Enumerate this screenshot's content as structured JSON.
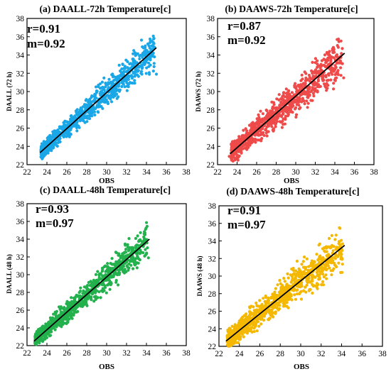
{
  "charts": [
    {
      "id": "a",
      "title": "(a) DAALL-72h Temperature[c]",
      "r_label": "r=0.91",
      "m_label": "m=0.92",
      "xlabel": "OBS",
      "ylabel": "DAALL (72 h)",
      "color": "#1aa7e8",
      "xlim": [
        22,
        38
      ],
      "ylim": [
        22,
        38
      ],
      "ticks": [
        "22",
        "24",
        "26",
        "28",
        "30",
        "32",
        "34",
        "36",
        "38"
      ],
      "fit": {
        "x": [
          23.3,
          35.0
        ],
        "y": [
          23.3,
          34.8
        ]
      }
    },
    {
      "id": "b",
      "title": "(b) DAAWS-72h Temperature[c]",
      "r_label": "r=0.87",
      "m_label": "m=0.92",
      "xlabel": "OBS",
      "ylabel": "DAAWS (72 h)",
      "color": "#ee4a4a",
      "xlim": [
        22,
        38
      ],
      "ylim": [
        22,
        38
      ],
      "ticks": [
        "22",
        "24",
        "26",
        "28",
        "30",
        "32",
        "34",
        "36",
        "38"
      ],
      "fit": {
        "x": [
          23.3,
          35.0
        ],
        "y": [
          23.2,
          34.2
        ]
      }
    },
    {
      "id": "c",
      "title": "(c) DAALL-48h Temperature[c]",
      "r_label": "r=0.93",
      "m_label": "m=0.97",
      "xlabel": "OBS",
      "ylabel": "DAALL (48 h)",
      "color": "#22b14c",
      "xlim": [
        22,
        38
      ],
      "ylim": [
        22,
        38
      ],
      "ticks": [
        "22",
        "24",
        "26",
        "28",
        "30",
        "32",
        "34",
        "36",
        "38"
      ],
      "fit": {
        "x": [
          22.7,
          34.3
        ],
        "y": [
          22.5,
          34.0
        ]
      }
    },
    {
      "id": "d",
      "title": "(d) DAAWS-48h Temperature[c]",
      "r_label": "r=0.91",
      "m_label": "m=0.97",
      "xlabel": "OBS",
      "ylabel": "DAAWS (48 h)",
      "color": "#f5b800",
      "xlim": [
        22,
        38
      ],
      "ylim": [
        22,
        38
      ],
      "ticks": [
        "22",
        "24",
        "26",
        "28",
        "30",
        "32",
        "34",
        "36",
        "38"
      ],
      "fit": {
        "x": [
          22.7,
          34.3
        ],
        "y": [
          22.6,
          33.5
        ]
      }
    }
  ],
  "chart_data": [
    {
      "type": "scatter",
      "title": "(a) DAALL-72h Temperature[c]",
      "xlabel": "OBS",
      "ylabel": "DAALL (72 h)",
      "xlim": [
        22,
        38
      ],
      "ylim": [
        22,
        38
      ],
      "annotations": [
        "r=0.91",
        "m=0.92"
      ],
      "fit_line": {
        "x": [
          23.3,
          35.0
        ],
        "y": [
          23.3,
          34.8
        ]
      },
      "points": {
        "x": [
          23.4,
          23.6,
          23.8,
          24.0,
          24.2,
          24.3,
          24.5,
          24.6,
          24.8,
          25.0,
          25.1,
          25.3,
          25.5,
          25.6,
          25.8,
          26.0,
          26.2,
          26.4,
          26.6,
          26.8,
          27.0,
          27.2,
          27.4,
          27.6,
          27.8,
          28.0,
          28.2,
          28.5,
          28.8,
          29.0,
          29.3,
          29.6,
          29.9,
          30.2,
          30.5,
          30.8,
          31.1,
          31.4,
          31.7,
          32.0,
          32.3,
          32.6,
          32.9,
          33.2,
          33.5,
          33.8,
          34.1,
          34.4,
          34.8,
          35.0
        ],
        "y": [
          23.6,
          24.1,
          23.9,
          24.5,
          24.0,
          25.2,
          24.6,
          24.3,
          25.4,
          25.0,
          25.8,
          25.2,
          26.1,
          25.4,
          25.9,
          26.3,
          25.7,
          26.8,
          26.2,
          27.0,
          26.6,
          27.4,
          26.9,
          27.8,
          27.2,
          28.1,
          27.7,
          28.4,
          28.9,
          28.3,
          29.2,
          29.8,
          29.4,
          30.1,
          30.6,
          30.2,
          31.0,
          31.3,
          30.8,
          31.7,
          32.1,
          31.6,
          32.4,
          32.8,
          32.2,
          33.0,
          33.5,
          32.9,
          33.8,
          31.9
        ]
      }
    },
    {
      "type": "scatter",
      "title": "(b) DAAWS-72h Temperature[c]",
      "xlabel": "OBS",
      "ylabel": "DAAWS (72 h)",
      "xlim": [
        22,
        38
      ],
      "ylim": [
        22,
        38
      ],
      "annotations": [
        "r=0.87",
        "m=0.92"
      ],
      "fit_line": {
        "x": [
          23.3,
          35.0
        ],
        "y": [
          23.2,
          34.2
        ]
      },
      "points": {
        "x": [
          23.2,
          23.5,
          23.8,
          24.0,
          24.2,
          24.4,
          24.6,
          24.8,
          25.0,
          25.2,
          25.4,
          25.6,
          25.8,
          26.0,
          26.2,
          26.4,
          26.6,
          26.8,
          27.0,
          27.2,
          27.4,
          27.7,
          28.0,
          28.3,
          28.6,
          28.9,
          29.2,
          29.5,
          29.8,
          30.1,
          30.4,
          30.7,
          31.0,
          31.3,
          31.6,
          31.9,
          32.2,
          32.5,
          32.8,
          33.1,
          33.4,
          33.7,
          34.0,
          34.3,
          34.6,
          34.9
        ],
        "y": [
          22.9,
          23.8,
          24.2,
          23.7,
          24.8,
          24.3,
          25.1,
          24.6,
          25.5,
          24.9,
          25.8,
          25.3,
          26.2,
          25.7,
          26.6,
          26.0,
          27.0,
          26.4,
          27.3,
          26.8,
          27.6,
          27.1,
          28.0,
          27.5,
          28.5,
          28.0,
          28.9,
          28.4,
          29.3,
          29.8,
          29.2,
          30.1,
          30.6,
          30.0,
          31.0,
          31.4,
          30.8,
          31.8,
          32.2,
          31.6,
          32.6,
          33.0,
          32.4,
          33.5,
          33.8,
          31.5
        ]
      }
    },
    {
      "type": "scatter",
      "title": "(c) DAALL-48h Temperature[c]",
      "xlabel": "OBS",
      "ylabel": "DAALL (48 h)",
      "xlim": [
        22,
        38
      ],
      "ylim": [
        22,
        38
      ],
      "annotations": [
        "r=0.93",
        "m=0.97"
      ],
      "fit_line": {
        "x": [
          22.7,
          34.3
        ],
        "y": [
          22.5,
          34.0
        ]
      },
      "points": {
        "x": [
          22.8,
          23.1,
          23.4,
          23.7,
          24.0,
          24.2,
          24.4,
          24.6,
          24.8,
          25.0,
          25.2,
          25.4,
          25.6,
          25.8,
          26.0,
          26.2,
          26.4,
          26.7,
          27.0,
          27.3,
          27.6,
          27.9,
          28.2,
          28.5,
          28.8,
          29.1,
          29.4,
          29.7,
          30.0,
          30.3,
          30.6,
          30.9,
          31.2,
          31.5,
          31.8,
          32.1,
          32.4,
          32.7,
          33.0,
          33.3,
          33.6,
          33.9,
          34.2
        ],
        "y": [
          22.3,
          23.0,
          23.6,
          23.3,
          24.0,
          23.7,
          24.3,
          24.0,
          24.6,
          25.0,
          24.6,
          25.4,
          25.1,
          25.8,
          26.2,
          25.7,
          26.6,
          27.0,
          26.5,
          27.4,
          27.9,
          27.3,
          28.2,
          28.7,
          28.1,
          29.0,
          29.5,
          28.9,
          29.9,
          30.4,
          29.8,
          30.8,
          31.2,
          30.6,
          31.6,
          32.1,
          31.5,
          32.5,
          33.0,
          32.4,
          33.3,
          32.2,
          31.9
        ]
      }
    },
    {
      "type": "scatter",
      "title": "(d) DAAWS-48h Temperature[c]",
      "xlabel": "OBS",
      "ylabel": "DAAWS (48 h)",
      "xlim": [
        22,
        38
      ],
      "ylim": [
        22,
        38
      ],
      "annotations": [
        "r=0.91",
        "m=0.97"
      ],
      "fit_line": {
        "x": [
          22.7,
          34.3
        ],
        "y": [
          22.6,
          33.5
        ]
      },
      "points": {
        "x": [
          22.8,
          23.1,
          23.4,
          23.7,
          24.0,
          24.2,
          24.4,
          24.6,
          24.8,
          25.0,
          25.2,
          25.4,
          25.6,
          25.8,
          26.0,
          26.2,
          26.5,
          26.8,
          27.1,
          27.4,
          27.7,
          28.0,
          28.3,
          28.6,
          28.9,
          29.2,
          29.5,
          29.8,
          30.1,
          30.4,
          30.7,
          31.0,
          31.3,
          31.6,
          31.9,
          32.2,
          32.5,
          32.8,
          33.1,
          33.4,
          33.7,
          34.0
        ],
        "y": [
          22.5,
          23.2,
          23.0,
          23.7,
          24.1,
          23.8,
          24.4,
          24.1,
          24.8,
          25.1,
          24.7,
          25.5,
          25.1,
          25.9,
          26.2,
          25.8,
          26.6,
          27.0,
          26.5,
          27.4,
          27.8,
          27.3,
          28.1,
          28.6,
          28.0,
          28.9,
          29.3,
          28.8,
          29.7,
          30.2,
          29.6,
          30.5,
          31.0,
          30.4,
          31.4,
          31.8,
          31.2,
          32.2,
          32.6,
          32.0,
          33.2,
          32.5
        ]
      }
    }
  ]
}
